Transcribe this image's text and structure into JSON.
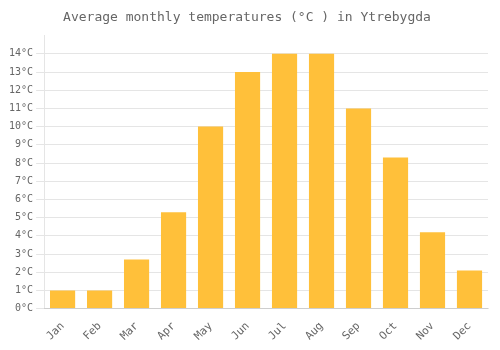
{
  "chart_data": {
    "type": "bar",
    "title": "Average monthly temperatures (°C ) in Ytrebygda",
    "categories": [
      "Jan",
      "Feb",
      "Mar",
      "Apr",
      "May",
      "Jun",
      "Jul",
      "Aug",
      "Sep",
      "Oct",
      "Nov",
      "Dec"
    ],
    "values": [
      1.0,
      1.0,
      2.7,
      5.3,
      10.0,
      13.0,
      14.0,
      14.0,
      11.0,
      8.3,
      4.2,
      2.1
    ],
    "color": "#FFC03A",
    "ylim": [
      0,
      15
    ],
    "yticks": [
      {
        "value": 0,
        "label": "0°C"
      },
      {
        "value": 1,
        "label": "1°C"
      },
      {
        "value": 2,
        "label": "2°C"
      },
      {
        "value": 3,
        "label": "3°C"
      },
      {
        "value": 4,
        "label": "4°C"
      },
      {
        "value": 5,
        "label": "5°C"
      },
      {
        "value": 6,
        "label": "6°C"
      },
      {
        "value": 7,
        "label": "7°C"
      },
      {
        "value": 8,
        "label": "8°C"
      },
      {
        "value": 9,
        "label": "9°C"
      },
      {
        "value": 10,
        "label": "10°C"
      },
      {
        "value": 11,
        "label": "11°C"
      },
      {
        "value": 12,
        "label": "12°C"
      },
      {
        "value": 13,
        "label": "13°C"
      },
      {
        "value": 14,
        "label": "14°C"
      }
    ],
    "grid": true
  }
}
